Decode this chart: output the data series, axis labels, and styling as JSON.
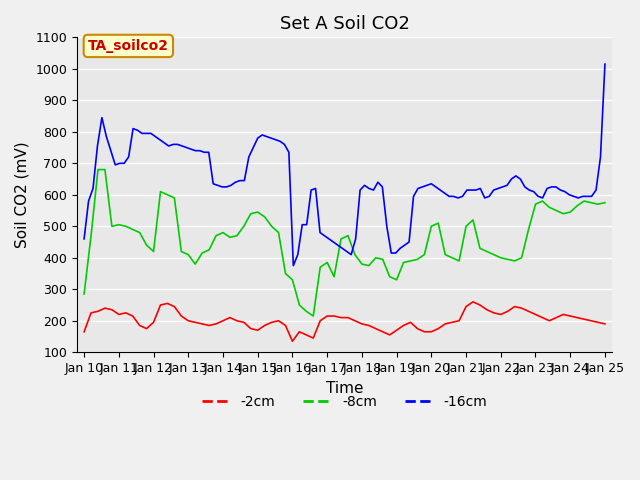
{
  "title": "Set A Soil CO2",
  "xlabel": "Time",
  "ylabel": "Soil CO2 (mV)",
  "ylim": [
    100,
    1100
  ],
  "xlim": [
    0,
    15
  ],
  "xtick_labels": [
    "Jan 10",
    "Jan 11",
    "Jan 12",
    "Jan 13",
    "Jan 14",
    "Jan 15",
    "Jan 16",
    "Jan 17",
    "Jan 18",
    "Jan 19",
    "Jan 20",
    "Jan 21",
    "Jan 22",
    "Jan 23",
    "Jan 24",
    "Jan 25"
  ],
  "ytick_values": [
    100,
    200,
    300,
    400,
    500,
    600,
    700,
    800,
    900,
    1000,
    1100
  ],
  "line_colors": {
    "2cm": "#ff0000",
    "8cm": "#00cc00",
    "16cm": "#0000ff"
  },
  "legend_labels": [
    "-2cm",
    "-8cm",
    "-16cm"
  ],
  "annotation_text": "TA_soilco2",
  "annotation_bg": "#ffffcc",
  "annotation_border": "#cc8800",
  "bg_color": "#e8e8e8",
  "grid_color": "#ffffff",
  "title_fontsize": 13,
  "axis_label_fontsize": 11,
  "tick_fontsize": 9,
  "2cm_data": [
    165,
    225,
    230,
    240,
    235,
    220,
    225,
    215,
    185,
    175,
    195,
    250,
    255,
    245,
    215,
    200,
    195,
    190,
    185,
    190,
    200,
    210,
    200,
    195,
    175,
    170,
    185,
    195,
    200,
    185,
    135,
    165,
    155,
    145,
    200,
    215,
    215,
    210,
    210,
    200,
    190,
    185,
    175,
    165,
    155,
    170,
    185,
    195,
    175,
    165,
    165,
    175,
    190,
    195,
    200,
    245,
    260,
    250,
    235,
    225,
    220,
    230,
    245,
    240,
    230,
    220,
    210,
    200,
    210,
    220,
    215,
    210,
    205,
    200,
    195,
    190
  ],
  "8cm_data": [
    285,
    470,
    680,
    680,
    500,
    505,
    500,
    490,
    480,
    440,
    420,
    610,
    600,
    590,
    420,
    410,
    380,
    415,
    425,
    470,
    480,
    465,
    470,
    500,
    540,
    545,
    530,
    500,
    480,
    350,
    330,
    250,
    230,
    215,
    370,
    385,
    340,
    460,
    470,
    410,
    380,
    375,
    400,
    395,
    340,
    330,
    385,
    390,
    395,
    410,
    500,
    510,
    410,
    400,
    390,
    500,
    520,
    430,
    420,
    410,
    400,
    395,
    390,
    400,
    490,
    570,
    580,
    560,
    550,
    540,
    545,
    565,
    580,
    575,
    570,
    575
  ],
  "16cm_data": [
    460,
    580,
    620,
    755,
    845,
    785,
    740,
    695,
    700,
    700,
    720,
    810,
    805,
    795,
    795,
    795,
    785,
    775,
    765,
    755,
    760,
    760,
    755,
    750,
    745,
    740,
    740,
    735,
    735,
    635,
    630,
    625,
    625,
    630,
    640,
    645,
    645,
    720,
    750,
    780,
    790,
    785,
    780,
    775,
    770,
    760,
    735,
    375,
    410,
    505,
    505,
    615,
    620,
    480,
    470,
    460,
    450,
    440,
    430,
    420,
    410,
    460,
    615,
    630,
    620,
    615,
    640,
    625,
    500,
    415,
    415,
    430,
    440,
    450,
    595,
    620,
    625,
    630,
    635,
    625,
    615,
    605,
    595,
    595,
    590,
    595,
    615,
    615,
    615,
    620,
    590,
    595,
    615,
    620,
    625,
    630,
    650,
    660,
    650,
    625,
    615,
    610,
    595,
    590,
    620,
    625,
    625,
    615,
    610,
    600,
    595,
    590,
    595,
    595,
    595,
    615,
    720,
    1015
  ]
}
